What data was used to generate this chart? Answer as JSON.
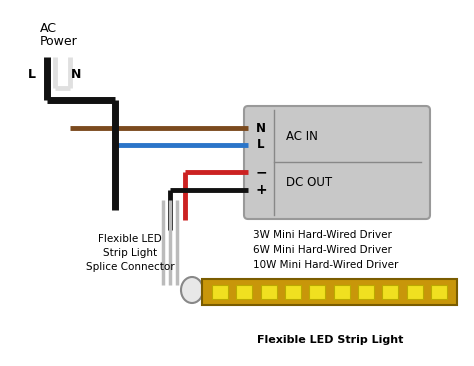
{
  "bg_color": "#ffffff",
  "ac_power_line1": "AC",
  "ac_power_line2": "Power",
  "L_label": "L",
  "N_label": "N",
  "ac_in_label": "AC IN",
  "dc_out_label": "DC OUT",
  "N_terminal": "N",
  "L_terminal": "L",
  "minus_terminal": "−",
  "plus_terminal": "+",
  "driver_lines": [
    "3W Mini Hard-Wired Driver",
    "6W Mini Hard-Wired Driver",
    "10W Mini Hard-Wired Driver"
  ],
  "splice_label": "Flexible LED\nStrip Light\nSplice Connector",
  "strip_label": "Flexible LED Strip Light",
  "brown_wire_color": "#7B4A1E",
  "blue_wire_color": "#2B75C9",
  "red_wire_color": "#CC2222",
  "black_wire_color": "#111111",
  "box_face_color": "#C8C8C8",
  "box_edge_color": "#999999",
  "led_strip_color": "#C8960A",
  "led_color": "#F0E020",
  "connector_face_color": "#E8E8E8",
  "connector_edge_color": "#888888",
  "wire_gray": "#BBBBBB",
  "n_leds": 10
}
